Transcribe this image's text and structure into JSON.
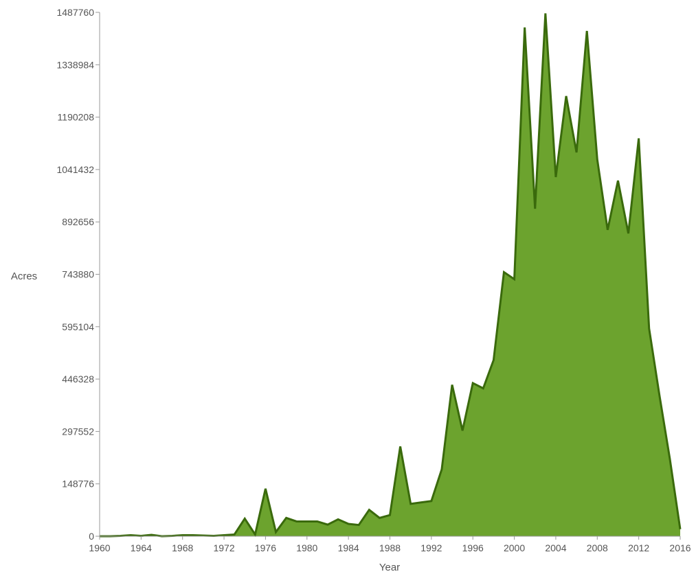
{
  "chart_data": {
    "type": "area",
    "title": "",
    "xlabel": "Year",
    "ylabel": "Acres",
    "xlim": [
      1960,
      2016
    ],
    "ylim": [
      0,
      1487760
    ],
    "x_ticks": [
      "1960",
      "1964",
      "1968",
      "1972",
      "1976",
      "1980",
      "1984",
      "1988",
      "1992",
      "1996",
      "2000",
      "2004",
      "2008",
      "2012",
      "2016"
    ],
    "y_ticks": [
      "0",
      "148776",
      "297552",
      "446328",
      "595104",
      "743880",
      "892656",
      "1041432",
      "1190208",
      "1338984",
      "1487760"
    ],
    "grid": false,
    "legend": "none",
    "colors": {
      "fill": "#6ca32e",
      "line": "#3a6a0c",
      "axis": "#999999",
      "text": "#555555"
    },
    "series": [
      {
        "x": [
          1960,
          1961,
          1962,
          1963,
          1964,
          1965,
          1966,
          1967,
          1968,
          1969,
          1970,
          1971,
          1972,
          1973,
          1974,
          1975,
          1976,
          1977,
          1978,
          1979,
          1980,
          1981,
          1982,
          1983,
          1984,
          1985,
          1986,
          1987,
          1988,
          1989,
          1990,
          1991,
          1992,
          1993,
          1994,
          1995,
          1996,
          1997,
          1998,
          1999,
          2000,
          2001,
          2002,
          2003,
          2004,
          2005,
          2006,
          2007,
          2008,
          2009,
          2010,
          2011,
          2012,
          2013,
          2014,
          2015,
          2016
        ],
        "values": [
          0,
          0,
          1000,
          3000,
          1000,
          4000,
          0,
          1000,
          3000,
          3000,
          2000,
          1000,
          3000,
          5000,
          50000,
          5000,
          135000,
          12000,
          52000,
          42000,
          42000,
          42000,
          33000,
          48000,
          35000,
          32000,
          75000,
          52000,
          60000,
          255000,
          92000,
          96000,
          100000,
          190000,
          430000,
          300000,
          435000,
          420000,
          500000,
          750000,
          730000,
          1445000,
          930000,
          1485000,
          1020000,
          1250000,
          1090000,
          1435000,
          1070000,
          870000,
          1010000,
          860000,
          1130000,
          590000,
          400000,
          220000,
          20000
        ]
      }
    ]
  }
}
